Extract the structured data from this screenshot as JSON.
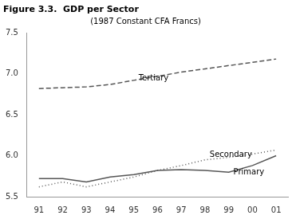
{
  "chart_data": {
    "type": "line",
    "title": "Figure 3.3.  GDP per Sector",
    "subtitle": "(1987 Constant CFA Francs)",
    "categories": [
      "91",
      "92",
      "93",
      "94",
      "95",
      "96",
      "97",
      "98",
      "99",
      "00",
      "01"
    ],
    "series": [
      {
        "name": "Tertiary",
        "color": "#555555",
        "line_style": "dashed",
        "values": [
          6.82,
          6.83,
          6.84,
          6.87,
          6.92,
          6.97,
          7.02,
          7.06,
          7.1,
          7.14,
          7.18
        ]
      },
      {
        "name": "Secondary",
        "color": "#555555",
        "line_style": "dotted",
        "values": [
          5.62,
          5.68,
          5.62,
          5.68,
          5.74,
          5.82,
          5.88,
          5.95,
          5.98,
          6.02,
          6.07
        ]
      },
      {
        "name": "Primary",
        "color": "#555555",
        "line_style": "solid",
        "values": [
          5.72,
          5.72,
          5.68,
          5.74,
          5.77,
          5.82,
          5.83,
          5.82,
          5.8,
          5.88,
          6.0
        ]
      }
    ],
    "annotations": [
      {
        "text": "Tertiary",
        "x": 4.2,
        "y": 6.9
      },
      {
        "text": "Secondary",
        "x": 7.2,
        "y": 5.96
      },
      {
        "text": "Primary",
        "x": 8.2,
        "y": 5.75
      }
    ],
    "ylim": [
      5.5,
      7.5
    ],
    "yticks": [
      5.5,
      {
        "value": 6.0,
        "label": "6.0"
      },
      6.5,
      {
        "value": 7.0,
        "label": "7.0"
      },
      7.5
    ],
    "grid": false
  }
}
